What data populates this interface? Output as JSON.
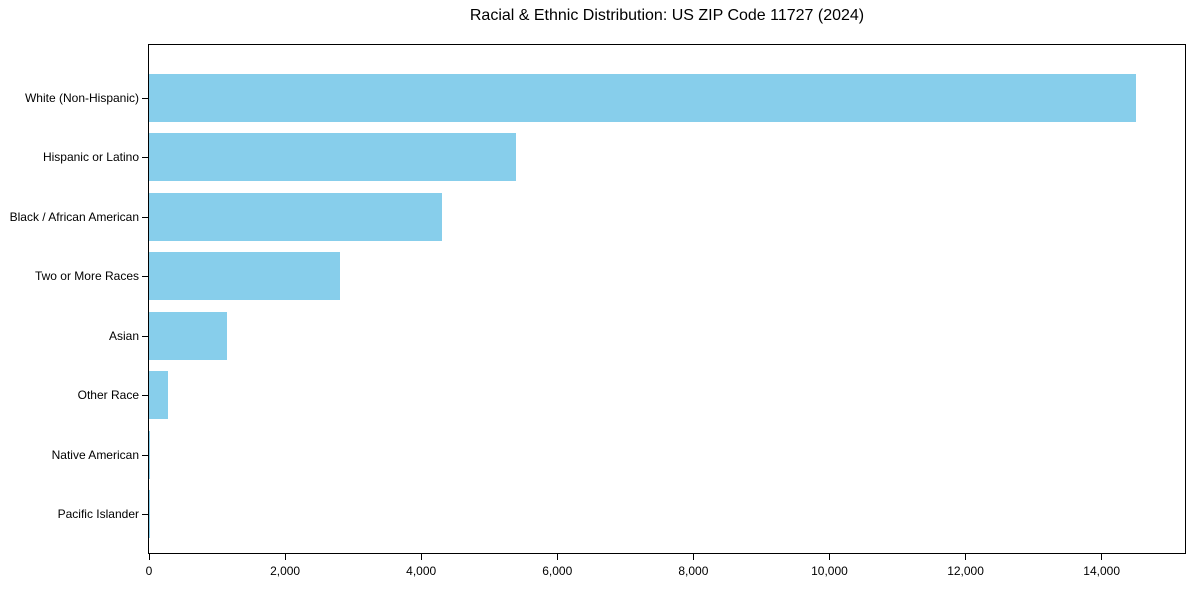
{
  "title": "Racial & Ethnic Distribution: US ZIP Code 11727 (2024)",
  "colors": {
    "bar": "#87CEEB",
    "axis": "#000000",
    "text": "#000000",
    "background": "#ffffff"
  },
  "chart_data": {
    "type": "bar",
    "orientation": "horizontal",
    "title": "Racial & Ethnic Distribution: US ZIP Code 11727 (2024)",
    "categories": [
      "White (Non-Hispanic)",
      "Hispanic or Latino",
      "Black / African American",
      "Two or More Races",
      "Asian",
      "Other Race",
      "Native American",
      "Pacific Islander"
    ],
    "values": [
      14500,
      5400,
      4300,
      2800,
      1150,
      280,
      20,
      10
    ],
    "xlabel": "",
    "ylabel": "",
    "xlim": [
      0,
      15225
    ],
    "x_ticks": [
      0,
      2000,
      4000,
      6000,
      8000,
      10000,
      12000,
      14000
    ],
    "x_tick_labels": [
      "0",
      "2,000",
      "4,000",
      "6,000",
      "8,000",
      "10,000",
      "12,000",
      "14,000"
    ],
    "grid": false,
    "legend": "none",
    "frame": "full-box"
  }
}
